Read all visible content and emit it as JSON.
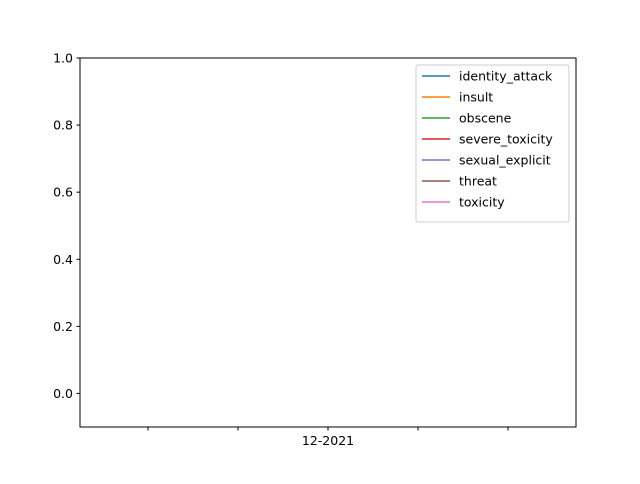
{
  "chart_data": {
    "type": "line",
    "title": "",
    "xlabel": "",
    "ylabel": "",
    "ylim": [
      -0.1,
      1.0
    ],
    "yticks": [
      0.0,
      0.2,
      0.4,
      0.6,
      0.8,
      1.0
    ],
    "ytick_labels": [
      "0.0",
      "0.2",
      "0.4",
      "0.6",
      "0.8",
      "1.0"
    ],
    "xticks": [
      "",
      "",
      "12-2021",
      "",
      ""
    ],
    "grid": false,
    "legend_position": "top-right",
    "series": [
      {
        "name": "identity_attack",
        "color": "#1f77b4",
        "x": [],
        "y": []
      },
      {
        "name": "insult",
        "color": "#ff7f0e",
        "x": [],
        "y": []
      },
      {
        "name": "obscene",
        "color": "#2ca02c",
        "x": [],
        "y": []
      },
      {
        "name": "severe_toxicity",
        "color": "#d62728",
        "x": [],
        "y": []
      },
      {
        "name": "sexual_explicit",
        "color": "#9467bd",
        "x": [],
        "y": []
      },
      {
        "name": "threat",
        "color": "#8c564b",
        "x": [],
        "y": []
      },
      {
        "name": "toxicity",
        "color": "#e377c2",
        "x": [],
        "y": []
      }
    ]
  }
}
